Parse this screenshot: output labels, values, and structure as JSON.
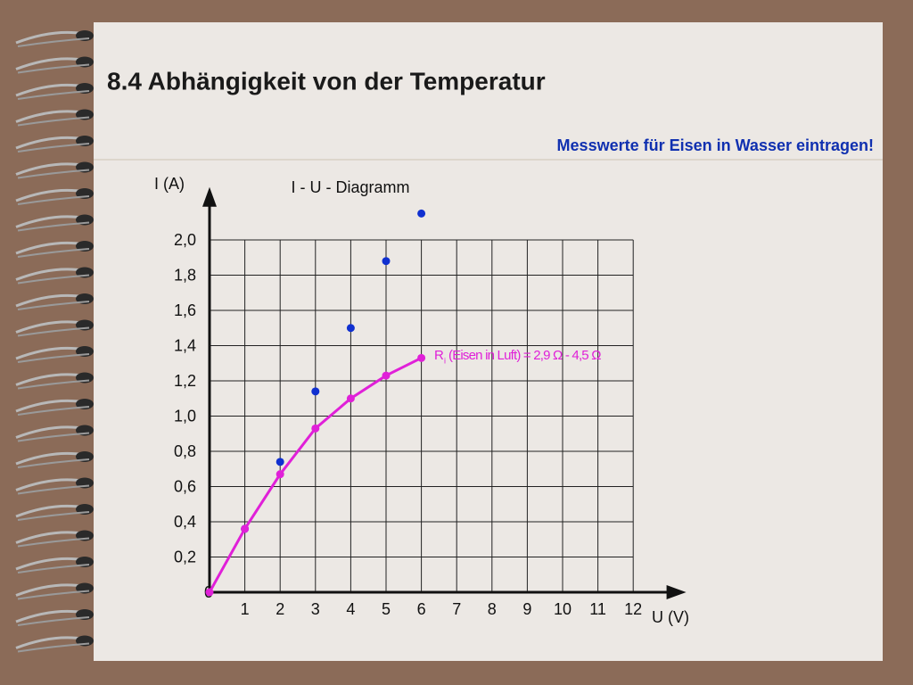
{
  "slide": {
    "title": "8.4 Abhängigkeit von der Temperatur",
    "note": "Messwerte für Eisen in Wasser eintragen!"
  },
  "chart_data": {
    "type": "scatter",
    "title": "I - U - Diagramm",
    "x_label": "U (V)",
    "y_label": "I (A)",
    "xlim": [
      0,
      13.5
    ],
    "ylim": [
      0,
      2.3
    ],
    "xticks": [
      0,
      1,
      2,
      3,
      4,
      5,
      6,
      7,
      8,
      9,
      10,
      11,
      12
    ],
    "yticks": [
      {
        "value": 0.2,
        "label": "0,2"
      },
      {
        "value": 0.4,
        "label": "0,4"
      },
      {
        "value": 0.6,
        "label": "0,6"
      },
      {
        "value": 0.8,
        "label": "0,8"
      },
      {
        "value": 1.0,
        "label": "1,0"
      },
      {
        "value": 1.2,
        "label": "1,2"
      },
      {
        "value": 1.4,
        "label": "1,4"
      },
      {
        "value": 1.6,
        "label": "1,6"
      },
      {
        "value": 1.8,
        "label": "1,8"
      },
      {
        "value": 2.0,
        "label": "2,0"
      }
    ],
    "grid": true,
    "series": [
      {
        "color": "#1030d0",
        "x": [
          1,
          2,
          3,
          4,
          5,
          6
        ],
        "values": [
          0.36,
          0.74,
          1.14,
          1.5,
          1.88,
          2.15
        ]
      },
      {
        "color": "#e020d8",
        "line": true,
        "x": [
          0,
          1,
          2,
          3,
          4,
          5,
          6
        ],
        "values": [
          0,
          0.36,
          0.67,
          0.93,
          1.1,
          1.23,
          1.33
        ]
      }
    ],
    "annotation": {
      "symbol": "R",
      "subscript": "i",
      "text": "(Eisen in Luft) = 2,9 Ω - 4,5 Ω",
      "color": "#e020d8"
    }
  }
}
